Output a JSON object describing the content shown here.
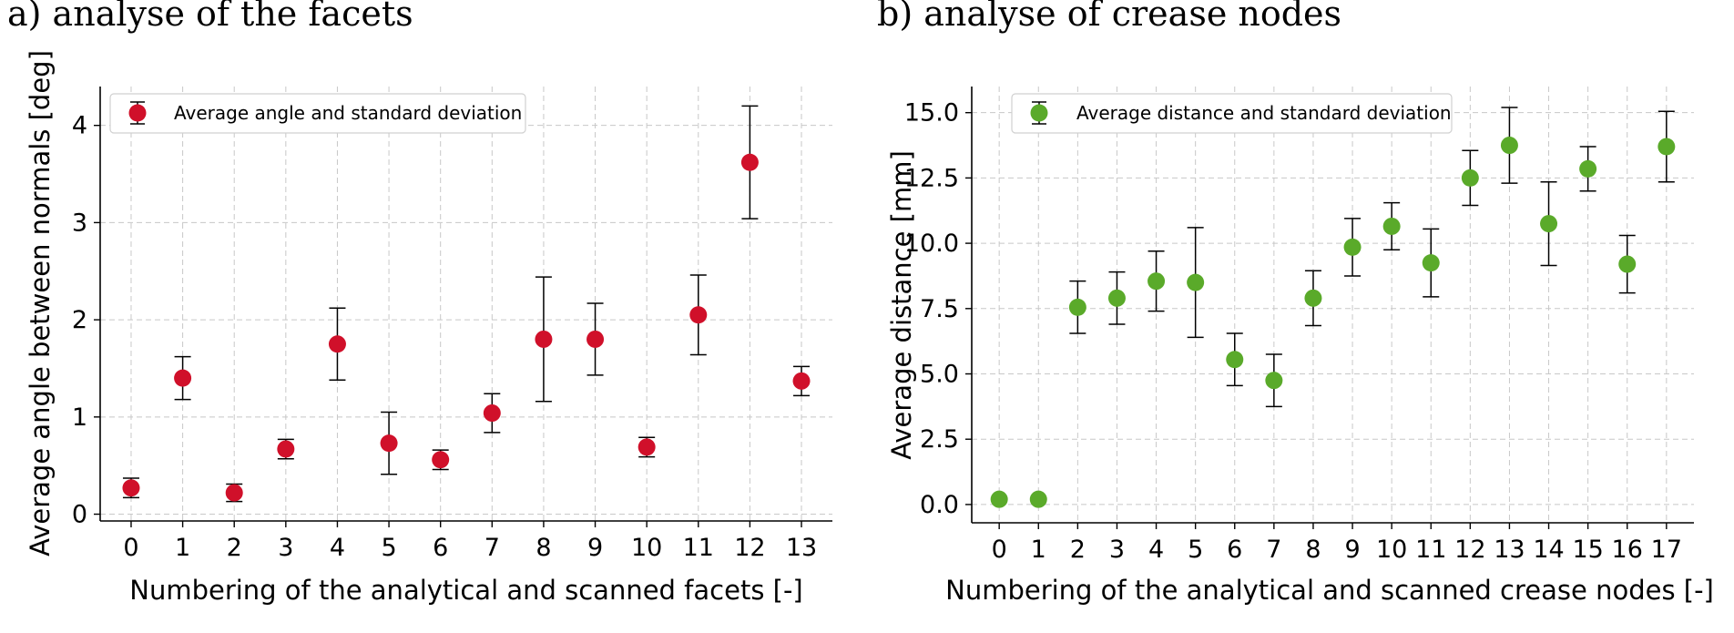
{
  "chart_data": [
    {
      "type": "scatter",
      "panel_title": "a) analyse of the facets",
      "xlabel": "Numbering of the analytical and scanned facets [-]",
      "ylabel": "Average angle between normals [deg]",
      "x": [
        0,
        1,
        2,
        3,
        4,
        5,
        6,
        7,
        8,
        9,
        10,
        11,
        12,
        13
      ],
      "xticks": [
        "0",
        "1",
        "2",
        "3",
        "4",
        "5",
        "6",
        "7",
        "8",
        "9",
        "10",
        "11",
        "12",
        "13"
      ],
      "yticks": [
        "0",
        "1",
        "2",
        "3",
        "4"
      ],
      "ylim": [
        -0.07,
        4.4
      ],
      "xlim": [
        -0.6,
        13.6
      ],
      "grid": true,
      "legend_position": "top-left",
      "color": "#d0102a",
      "series": [
        {
          "name": "Average angle and standard deviation",
          "values": [
            0.27,
            1.4,
            0.22,
            0.67,
            1.75,
            0.73,
            0.56,
            1.04,
            1.8,
            1.8,
            0.69,
            2.05,
            3.62,
            1.37
          ],
          "std": [
            0.1,
            0.22,
            0.09,
            0.1,
            0.37,
            0.32,
            0.1,
            0.2,
            0.64,
            0.37,
            0.1,
            0.41,
            0.58,
            0.15
          ]
        }
      ]
    },
    {
      "type": "scatter",
      "panel_title": "b) analyse of crease nodes",
      "xlabel": "Numbering of the analytical and scanned crease nodes [-]",
      "ylabel": "Average distance [mm]",
      "x": [
        0,
        1,
        2,
        3,
        4,
        5,
        6,
        7,
        8,
        9,
        10,
        11,
        12,
        13,
        14,
        15,
        16,
        17
      ],
      "xticks": [
        "0",
        "1",
        "2",
        "3",
        "4",
        "5",
        "6",
        "7",
        "8",
        "9",
        "10",
        "11",
        "12",
        "13",
        "14",
        "15",
        "16",
        "17"
      ],
      "yticks": [
        "0.0",
        "2.5",
        "5.0",
        "7.5",
        "10.0",
        "12.5",
        "15.0"
      ],
      "ylim": [
        -0.7,
        16.0
      ],
      "xlim": [
        -0.7,
        17.7
      ],
      "grid": true,
      "legend_position": "top-left",
      "color": "#5aaa2a",
      "series": [
        {
          "name": "Average distance and standard deviation",
          "values": [
            0.2,
            0.2,
            7.55,
            7.9,
            8.55,
            8.5,
            5.55,
            4.75,
            7.9,
            9.85,
            10.65,
            9.25,
            12.5,
            13.75,
            10.75,
            12.85,
            9.2,
            13.7
          ],
          "std": [
            0.0,
            0.0,
            1.0,
            1.0,
            1.15,
            2.1,
            1.0,
            1.0,
            1.05,
            1.1,
            0.9,
            1.3,
            1.05,
            1.45,
            1.6,
            0.85,
            1.1,
            1.35
          ]
        }
      ]
    }
  ]
}
